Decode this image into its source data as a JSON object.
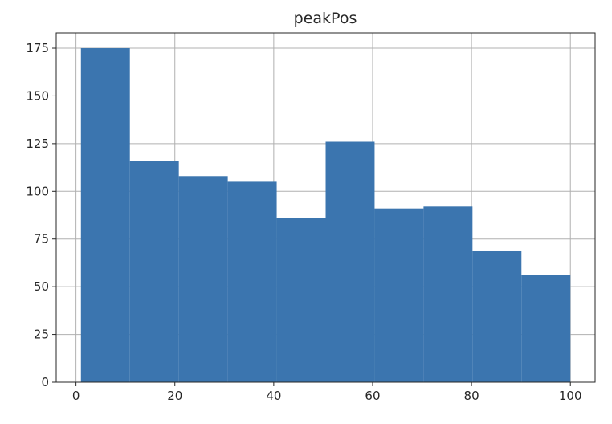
{
  "chart_data": {
    "type": "bar",
    "title": "peakPos",
    "xlabel": "",
    "ylabel": "",
    "xlim": [
      -4,
      105
    ],
    "ylim": [
      0,
      183
    ],
    "x_ticks": [
      0,
      20,
      40,
      60,
      80,
      100
    ],
    "y_ticks": [
      0,
      25,
      50,
      75,
      100,
      125,
      150,
      175
    ],
    "grid": true,
    "bar_color": "#3b75af",
    "bins": [
      {
        "x0": 1.0,
        "x1": 10.9,
        "value": 175
      },
      {
        "x0": 10.9,
        "x1": 20.8,
        "value": 116
      },
      {
        "x0": 20.8,
        "x1": 30.7,
        "value": 108
      },
      {
        "x0": 30.7,
        "x1": 40.6,
        "value": 105
      },
      {
        "x0": 40.6,
        "x1": 50.5,
        "value": 86
      },
      {
        "x0": 50.5,
        "x1": 60.4,
        "value": 126
      },
      {
        "x0": 60.4,
        "x1": 70.3,
        "value": 91
      },
      {
        "x0": 70.3,
        "x1": 80.2,
        "value": 92
      },
      {
        "x0": 80.2,
        "x1": 90.1,
        "value": 69
      },
      {
        "x0": 90.1,
        "x1": 100.0,
        "value": 56
      }
    ]
  }
}
